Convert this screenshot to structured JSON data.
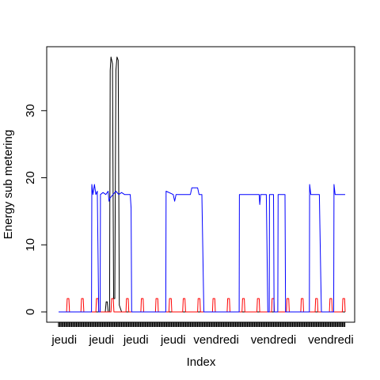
{
  "chart_data": {
    "type": "line",
    "title": "",
    "xlabel": "Index",
    "ylabel": "Energy sub metering",
    "xlim": [
      0,
      100
    ],
    "ylim": [
      0,
      38
    ],
    "grid": false,
    "legend": "none",
    "x_tick_labels": [
      {
        "x": 2,
        "label": "jeudi"
      },
      {
        "x": 15,
        "label": "jeudi"
      },
      {
        "x": 27,
        "label": "jeudi"
      },
      {
        "x": 40,
        "label": "jeudi"
      },
      {
        "x": 55,
        "label": "vendredi"
      },
      {
        "x": 75,
        "label": "vendredi"
      },
      {
        "x": 95,
        "label": "vendredi"
      }
    ],
    "y_ticks": [
      0,
      10,
      20,
      30
    ],
    "series": [
      {
        "color": "#000000",
        "points": [
          [
            0,
            0
          ],
          [
            16.3,
            0
          ],
          [
            16.6,
            1.5
          ],
          [
            17,
            1.5
          ],
          [
            17.3,
            0
          ],
          [
            17.8,
            0
          ],
          [
            18,
            36
          ],
          [
            18.3,
            38
          ],
          [
            18.8,
            37
          ],
          [
            19.2,
            2
          ],
          [
            19.6,
            2
          ],
          [
            20,
            36
          ],
          [
            20.4,
            38
          ],
          [
            20.8,
            37.5
          ],
          [
            21.2,
            1
          ],
          [
            22,
            0
          ],
          [
            100,
            0
          ]
        ]
      },
      {
        "color": "#ff0000",
        "points": [
          [
            0,
            0
          ],
          [
            2.8,
            0
          ],
          [
            3,
            2
          ],
          [
            3.6,
            2
          ],
          [
            3.8,
            0
          ],
          [
            7.8,
            0
          ],
          [
            8,
            2
          ],
          [
            8.6,
            2
          ],
          [
            8.8,
            0
          ],
          [
            13,
            0
          ],
          [
            13.2,
            2
          ],
          [
            13.8,
            2
          ],
          [
            14,
            0
          ],
          [
            18.3,
            0
          ],
          [
            18.5,
            2
          ],
          [
            19.1,
            2
          ],
          [
            19.3,
            0
          ],
          [
            23.5,
            0
          ],
          [
            23.7,
            2
          ],
          [
            24.3,
            2
          ],
          [
            24.5,
            0
          ],
          [
            28.7,
            0
          ],
          [
            28.9,
            2
          ],
          [
            29.5,
            2
          ],
          [
            29.7,
            0
          ],
          [
            33.8,
            0
          ],
          [
            34,
            2
          ],
          [
            34.6,
            2
          ],
          [
            34.8,
            0
          ],
          [
            38.5,
            0
          ],
          [
            38.7,
            2
          ],
          [
            39.3,
            2
          ],
          [
            39.5,
            0
          ],
          [
            43.3,
            0
          ],
          [
            43.5,
            2
          ],
          [
            44.1,
            2
          ],
          [
            44.3,
            0
          ],
          [
            48.5,
            0
          ],
          [
            48.7,
            2
          ],
          [
            49.3,
            2
          ],
          [
            49.5,
            0
          ],
          [
            53.7,
            0
          ],
          [
            53.9,
            2
          ],
          [
            54.5,
            2
          ],
          [
            54.7,
            0
          ],
          [
            58.8,
            0
          ],
          [
            59,
            2
          ],
          [
            59.6,
            2
          ],
          [
            59.8,
            0
          ],
          [
            64,
            0
          ],
          [
            64.2,
            2
          ],
          [
            64.8,
            2
          ],
          [
            65,
            0
          ],
          [
            69.2,
            0
          ],
          [
            69.4,
            2
          ],
          [
            70,
            2
          ],
          [
            70.2,
            0
          ],
          [
            74.3,
            0
          ],
          [
            74.5,
            2
          ],
          [
            75.1,
            2
          ],
          [
            75.3,
            0
          ],
          [
            79.5,
            0
          ],
          [
            79.7,
            2
          ],
          [
            80.3,
            2
          ],
          [
            80.5,
            0
          ],
          [
            84.5,
            0
          ],
          [
            84.7,
            2
          ],
          [
            85.3,
            2
          ],
          [
            85.5,
            0
          ],
          [
            89.5,
            0
          ],
          [
            89.7,
            2
          ],
          [
            90.3,
            2
          ],
          [
            90.5,
            0
          ],
          [
            94.5,
            0
          ],
          [
            94.7,
            2
          ],
          [
            95.3,
            2
          ],
          [
            95.5,
            0
          ],
          [
            99,
            0
          ],
          [
            99.2,
            2
          ],
          [
            99.8,
            2
          ],
          [
            100,
            0
          ]
        ]
      },
      {
        "color": "#0000ff",
        "points": [
          [
            0,
            0
          ],
          [
            11.5,
            0
          ],
          [
            11.6,
            19
          ],
          [
            12,
            17.5
          ],
          [
            12.5,
            19
          ],
          [
            13,
            17.5
          ],
          [
            13.5,
            18
          ],
          [
            14,
            0
          ],
          [
            14.5,
            0
          ],
          [
            14.6,
            17.5
          ],
          [
            15.5,
            17.8
          ],
          [
            16.5,
            17.5
          ],
          [
            17.3,
            18
          ],
          [
            17.6,
            16.5
          ],
          [
            18,
            17
          ],
          [
            19,
            17.5
          ],
          [
            20,
            18
          ],
          [
            21,
            17.5
          ],
          [
            22,
            17.8
          ],
          [
            23,
            17.5
          ],
          [
            24,
            17.5
          ],
          [
            25,
            17.5
          ],
          [
            25.3,
            15.5
          ],
          [
            25.5,
            0
          ],
          [
            37.4,
            0
          ],
          [
            37.5,
            18
          ],
          [
            40,
            17.5
          ],
          [
            40.5,
            16.5
          ],
          [
            41,
            17.5
          ],
          [
            42,
            17.5
          ],
          [
            44,
            17.5
          ],
          [
            46,
            17.5
          ],
          [
            46.5,
            18.5
          ],
          [
            47.5,
            18.5
          ],
          [
            48.5,
            18.5
          ],
          [
            49,
            17.5
          ],
          [
            50,
            17.5
          ],
          [
            50.7,
            0
          ],
          [
            63,
            0
          ],
          [
            63.1,
            17.5
          ],
          [
            65,
            17.5
          ],
          [
            67,
            17.5
          ],
          [
            69,
            17.5
          ],
          [
            70,
            17.5
          ],
          [
            70.2,
            16
          ],
          [
            70.5,
            17.5
          ],
          [
            72.5,
            17.5
          ],
          [
            73,
            0
          ],
          [
            73.5,
            0
          ],
          [
            73.6,
            17.5
          ],
          [
            75,
            17.5
          ],
          [
            75.2,
            0
          ],
          [
            76.5,
            0
          ],
          [
            76.6,
            17.5
          ],
          [
            79,
            17.5
          ],
          [
            79.2,
            0
          ],
          [
            87.5,
            0
          ],
          [
            87.6,
            19
          ],
          [
            88,
            17.5
          ],
          [
            90,
            17.5
          ],
          [
            91,
            17.5
          ],
          [
            91.5,
            5
          ],
          [
            91.7,
            0
          ],
          [
            96,
            0
          ],
          [
            96.1,
            19
          ],
          [
            96.5,
            17.5
          ],
          [
            100,
            17.5
          ]
        ]
      }
    ]
  }
}
